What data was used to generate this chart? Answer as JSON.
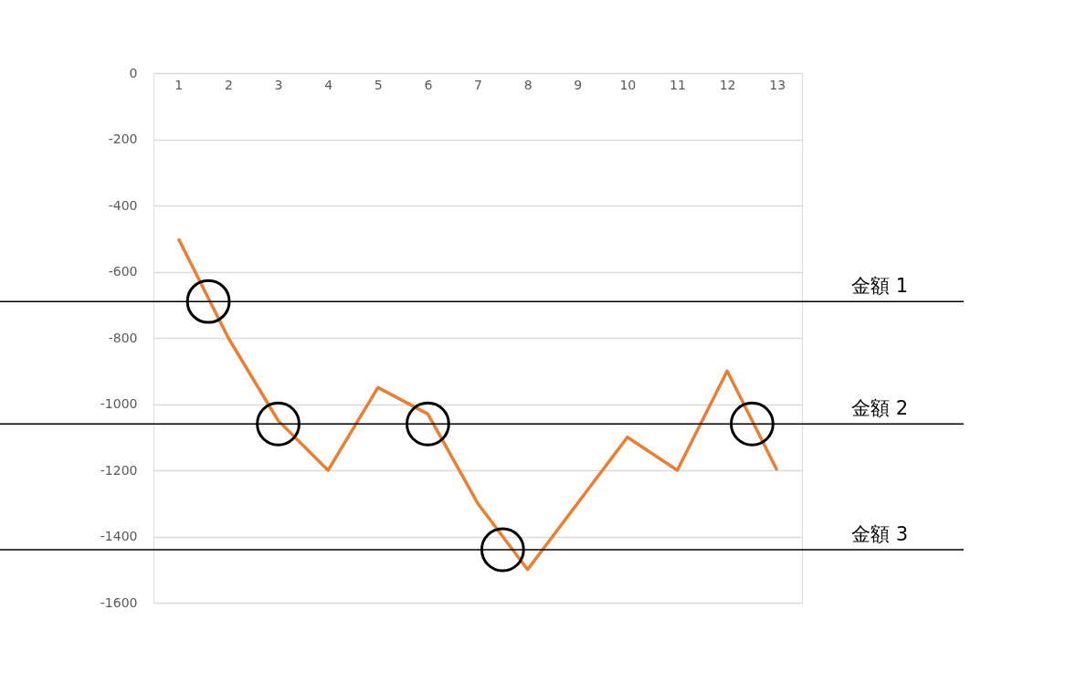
{
  "chart_data": {
    "type": "line",
    "x": [
      1,
      2,
      3,
      4,
      5,
      6,
      7,
      8,
      9,
      10,
      11,
      12,
      13
    ],
    "xlim": [
      0.5,
      13.5
    ],
    "xticks": [
      1,
      2,
      3,
      4,
      5,
      6,
      7,
      8,
      9,
      10,
      11,
      12,
      13
    ],
    "ylim": [
      -1600,
      0
    ],
    "yticks": [
      0,
      -200,
      -400,
      -600,
      -800,
      -1000,
      -1200,
      -1400,
      -1600
    ],
    "series": [
      {
        "color": "#ed7d31",
        "values": [
          -500,
          -800,
          -1050,
          -1200,
          -950,
          -1030,
          -1300,
          -1500,
          -1300,
          -1100,
          -1200,
          -900,
          -1200
        ]
      },
      {
        "type": "scatter",
        "marker": "circle",
        "color": "#000000",
        "x": [
          1.6,
          3,
          6,
          7.5,
          12.5
        ],
        "values": [
          -690,
          -1060,
          -1060,
          -1440,
          -1060
        ]
      }
    ],
    "ref_lines": [
      {
        "axis": "y",
        "value": -690,
        "label": "金額 1",
        "color": "#000000"
      },
      {
        "axis": "y",
        "value": -1060,
        "label": "金額 2",
        "color": "#000000"
      },
      {
        "axis": "y",
        "value": -1440,
        "label": "金額 3",
        "color": "#000000"
      }
    ],
    "grid": "y",
    "line_style": "solid"
  }
}
